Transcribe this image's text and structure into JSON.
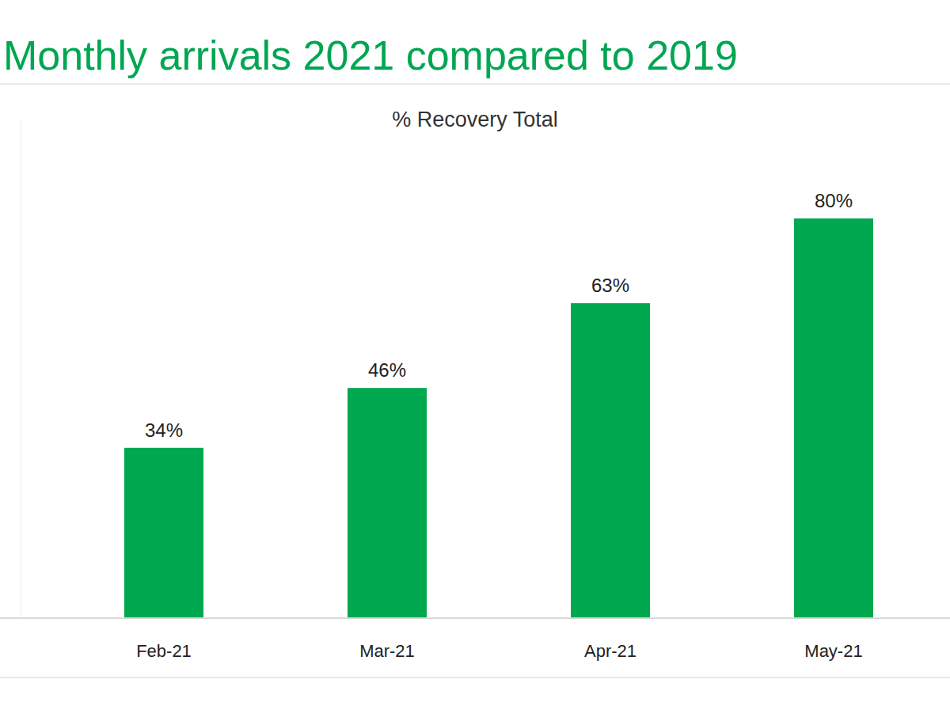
{
  "chart_data": {
    "type": "bar",
    "title": "Monthly arrivals 2021 compared to 2019",
    "subtitle": "% Recovery Total",
    "categories": [
      "Feb-21",
      "Mar-21",
      "Apr-21",
      "May-21"
    ],
    "values": [
      34,
      46,
      63,
      80
    ],
    "value_labels": [
      "34%",
      "46%",
      "63%",
      "80%"
    ],
    "color": "#00a84f",
    "ylim": [
      0,
      100
    ],
    "grid": false,
    "data_labels": true,
    "tick_labels": "x"
  }
}
